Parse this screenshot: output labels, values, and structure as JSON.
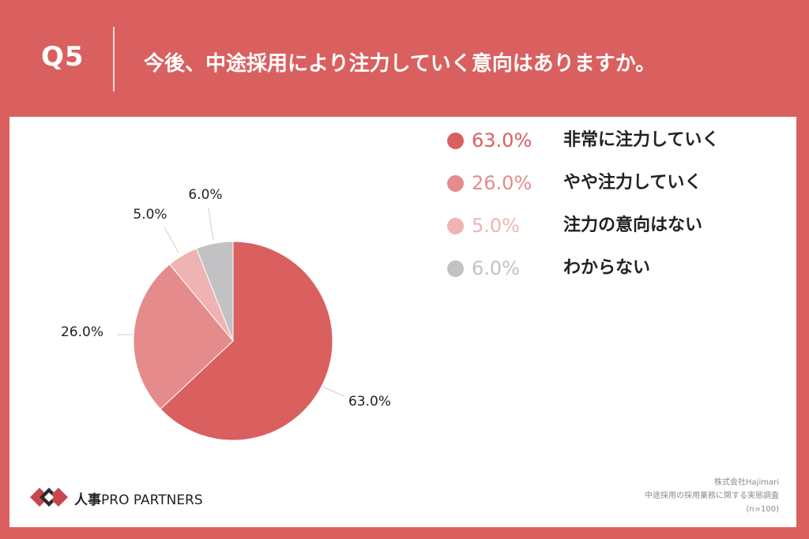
{
  "header": {
    "q_label": "Q5",
    "question": "今後、中途採用により注力していく意向はありますか。"
  },
  "colors": {
    "background": "#d9605f",
    "panel": "#ffffff",
    "series": [
      "#d9605f",
      "#e58b8b",
      "#efb3b3",
      "#c2c2c4"
    ]
  },
  "chart_data": {
    "type": "pie",
    "categories": [
      "非常に注力していく",
      "やや注力していく",
      "注力の意向はない",
      "わからない"
    ],
    "values": [
      63.0,
      26.0,
      5.0,
      6.0
    ],
    "labels": [
      "63.0%",
      "26.0%",
      "5.0%",
      "6.0%"
    ],
    "legend_position": "right"
  },
  "legend": [
    {
      "pct": "63.0%",
      "label": "非常に注力していく"
    },
    {
      "pct": "26.0%",
      "label": "やや注力していく"
    },
    {
      "pct": "5.0%",
      "label": "注力の意向はない"
    },
    {
      "pct": "6.0%",
      "label": "わからない"
    }
  ],
  "footer": {
    "logo_main": "人事",
    "logo_sub": "PRO PARTNERS",
    "credit_lines": [
      "株式会社Hajimari",
      "中途採用の採用業務に関する実態調査",
      "(n=100)"
    ]
  }
}
